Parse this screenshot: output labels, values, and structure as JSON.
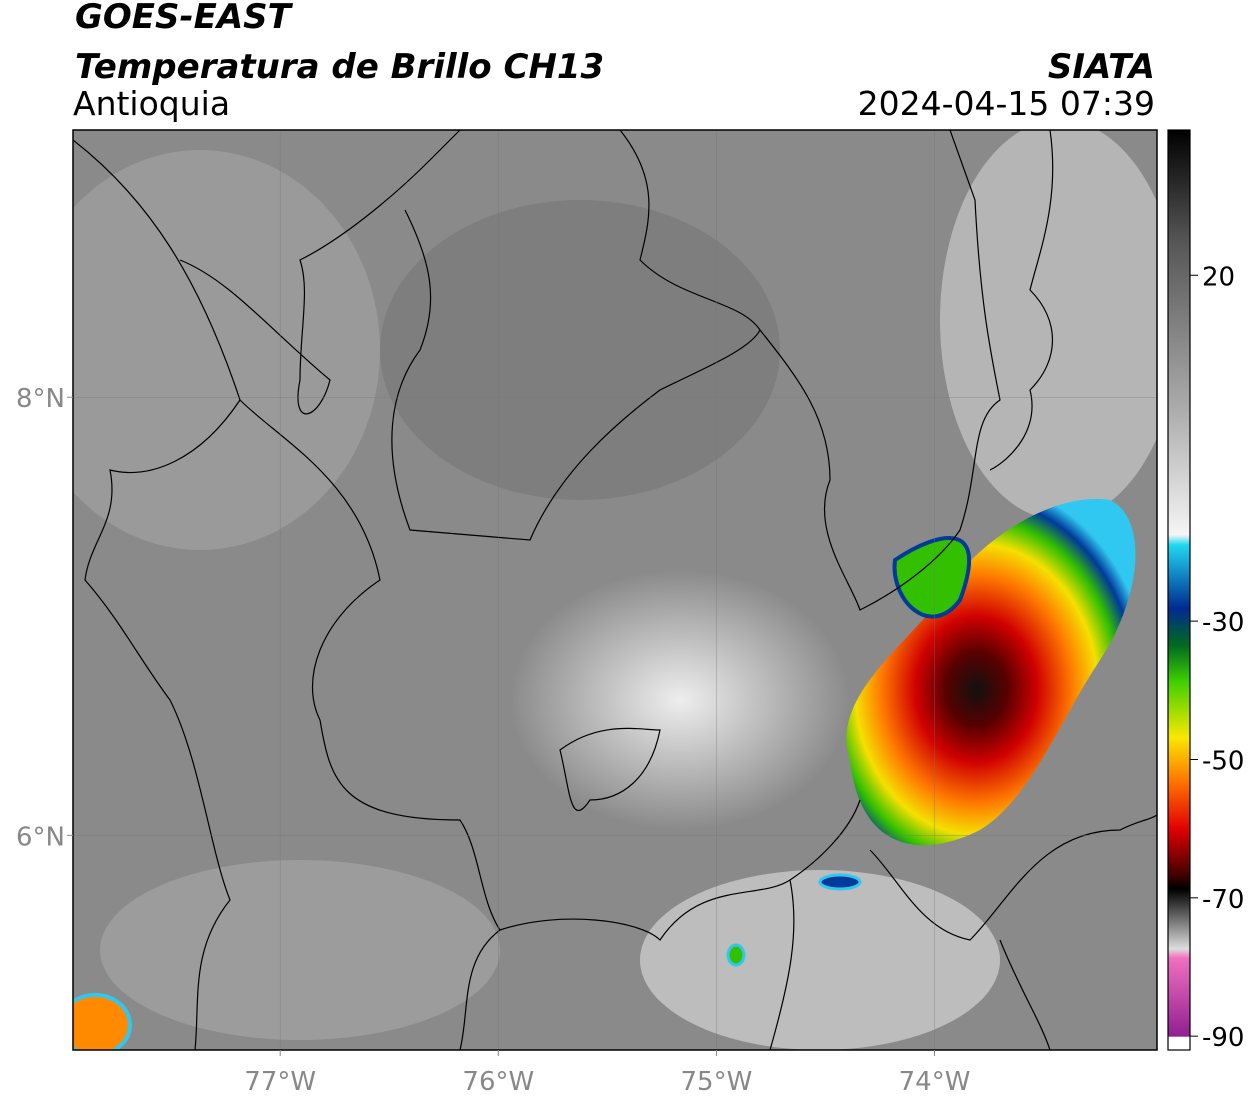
{
  "header": {
    "title": "GOES-EAST",
    "subtitle": "Temperatura de Brillo CH13",
    "region": "Antioquia",
    "source": "SIATA",
    "datetime": "2024-04-15 07:39"
  },
  "map": {
    "xlim": [
      -77.95,
      -72.98
    ],
    "ylim": [
      5.02,
      9.22
    ],
    "xticks": [
      {
        "value": -77,
        "label": "77°W"
      },
      {
        "value": -76,
        "label": "76°W"
      },
      {
        "value": -75,
        "label": "75°W"
      },
      {
        "value": -74,
        "label": "74°W"
      }
    ],
    "yticks": [
      {
        "value": 8,
        "label": "8°N"
      },
      {
        "value": 6,
        "label": "6°N"
      }
    ],
    "grid": true
  },
  "colorbar": {
    "lim": [
      41,
      -92
    ],
    "ticks": [
      20,
      -30,
      -50,
      -70,
      -90
    ]
  }
}
